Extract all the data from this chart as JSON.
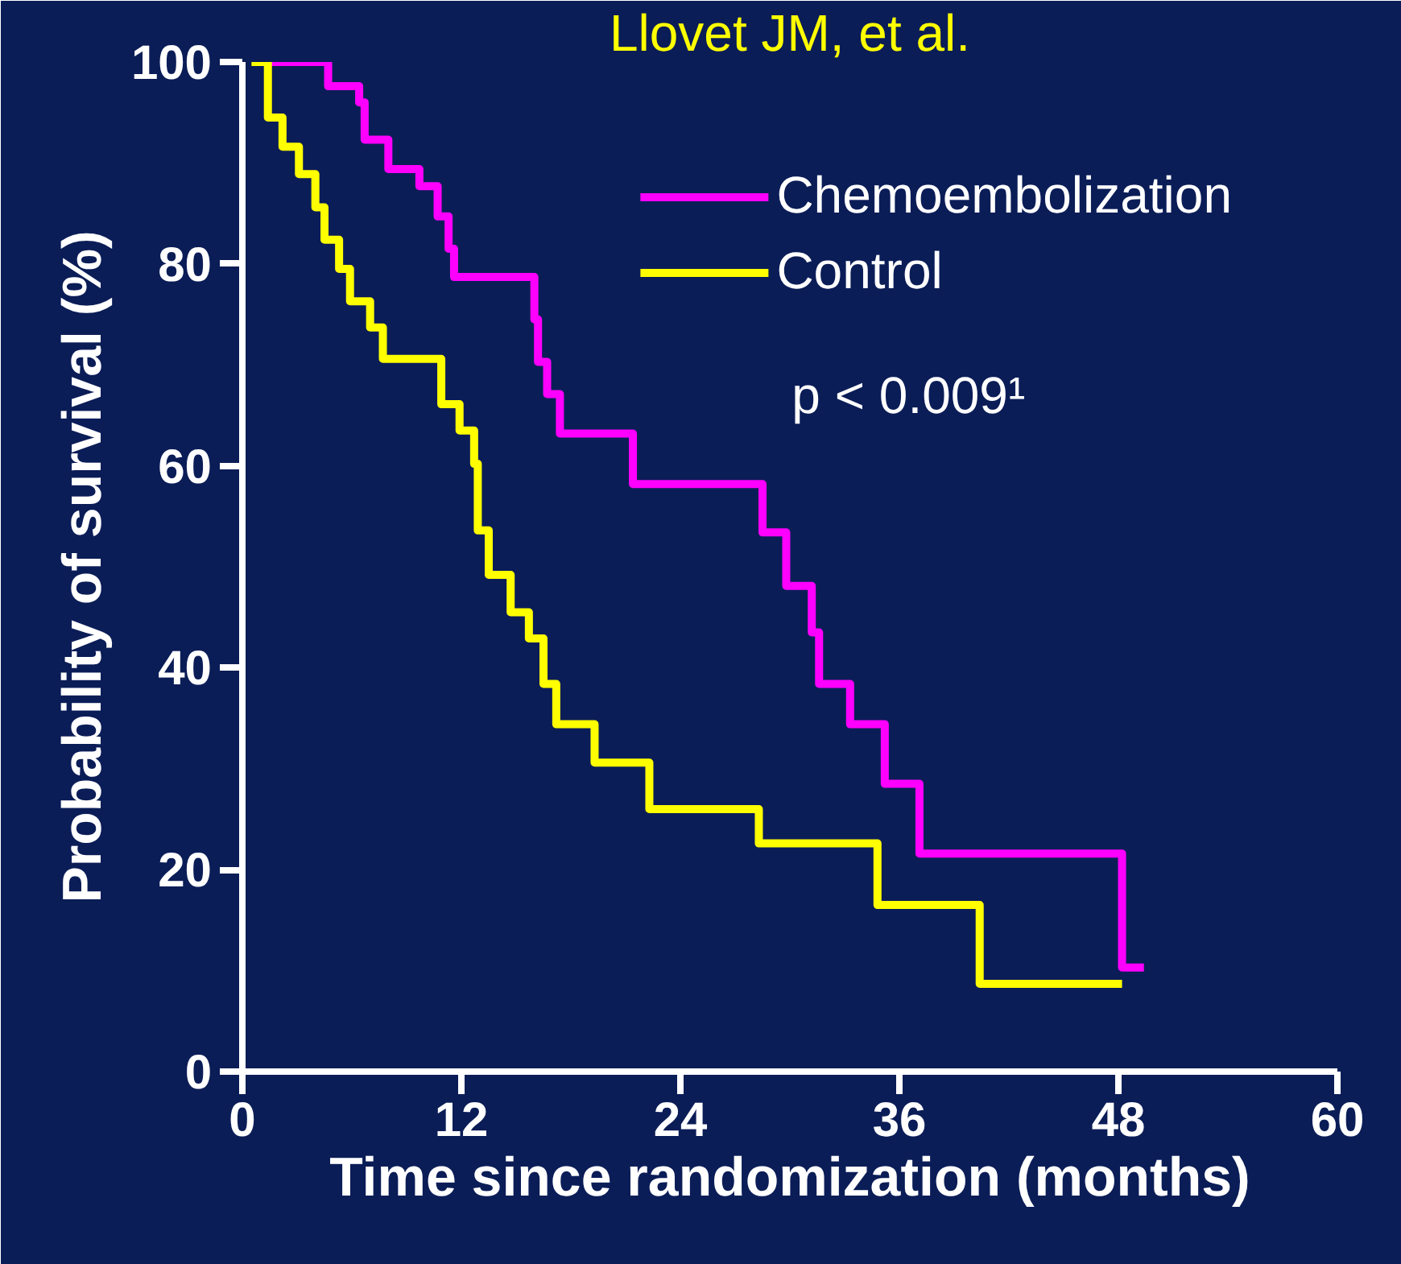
{
  "chart_data": {
    "type": "step",
    "xlabel": "Time since randomization (months)",
    "ylabel": "Probability of survival (%)",
    "annotations": [
      "Llovet JM, et al.",
      "p < 0.009¹"
    ],
    "xlim": [
      0,
      60
    ],
    "xticks": [
      0,
      12,
      24,
      36,
      48,
      60
    ],
    "ylim": [
      0,
      100
    ],
    "yticks": [
      0,
      20,
      40,
      60,
      80,
      100
    ],
    "grid": false,
    "legend": "top right",
    "line_style": "solid",
    "marker": "none",
    "series": [
      {
        "name": "Chemoembolization",
        "color": "#ff00ff",
        "x": [
          1.6,
          4.7,
          6.4,
          6.7,
          8.0,
          9.7,
          10.7,
          11.3,
          11.6,
          16.0,
          16.2,
          16.7,
          17.4,
          21.4,
          28.5,
          29.8,
          31.2,
          31.6,
          33.3,
          35.2,
          37.1,
          48.2,
          49.4
        ],
        "values": [
          100,
          97.6,
          96,
          92.3,
          89.4,
          87.7,
          84.7,
          81.5,
          78.7,
          74.5,
          70.3,
          67.1,
          63.2,
          58.2,
          53.4,
          48.1,
          43.5,
          38.4,
          34.4,
          28.5,
          21.6,
          10.3,
          10.3
        ]
      },
      {
        "name": "Control",
        "color": "#ffff00",
        "x": [
          0.5,
          1.4,
          2.2,
          3.1,
          4.0,
          4.5,
          5.3,
          5.9,
          7.0,
          7.7,
          10.9,
          11.9,
          12.7,
          12.9,
          13.5,
          14.7,
          15.7,
          16.5,
          17.2,
          19.3,
          22.3,
          28.3,
          34.8,
          40.4,
          48.2
        ],
        "values": [
          100,
          94.5,
          91.6,
          88.9,
          85.6,
          82.4,
          79.5,
          76.3,
          73.7,
          70.6,
          66.1,
          63.5,
          60.2,
          53.6,
          49.2,
          45.5,
          42.9,
          38.4,
          34.4,
          30.6,
          26.0,
          22.6,
          16.5,
          8.7,
          8.7
        ]
      }
    ]
  }
}
